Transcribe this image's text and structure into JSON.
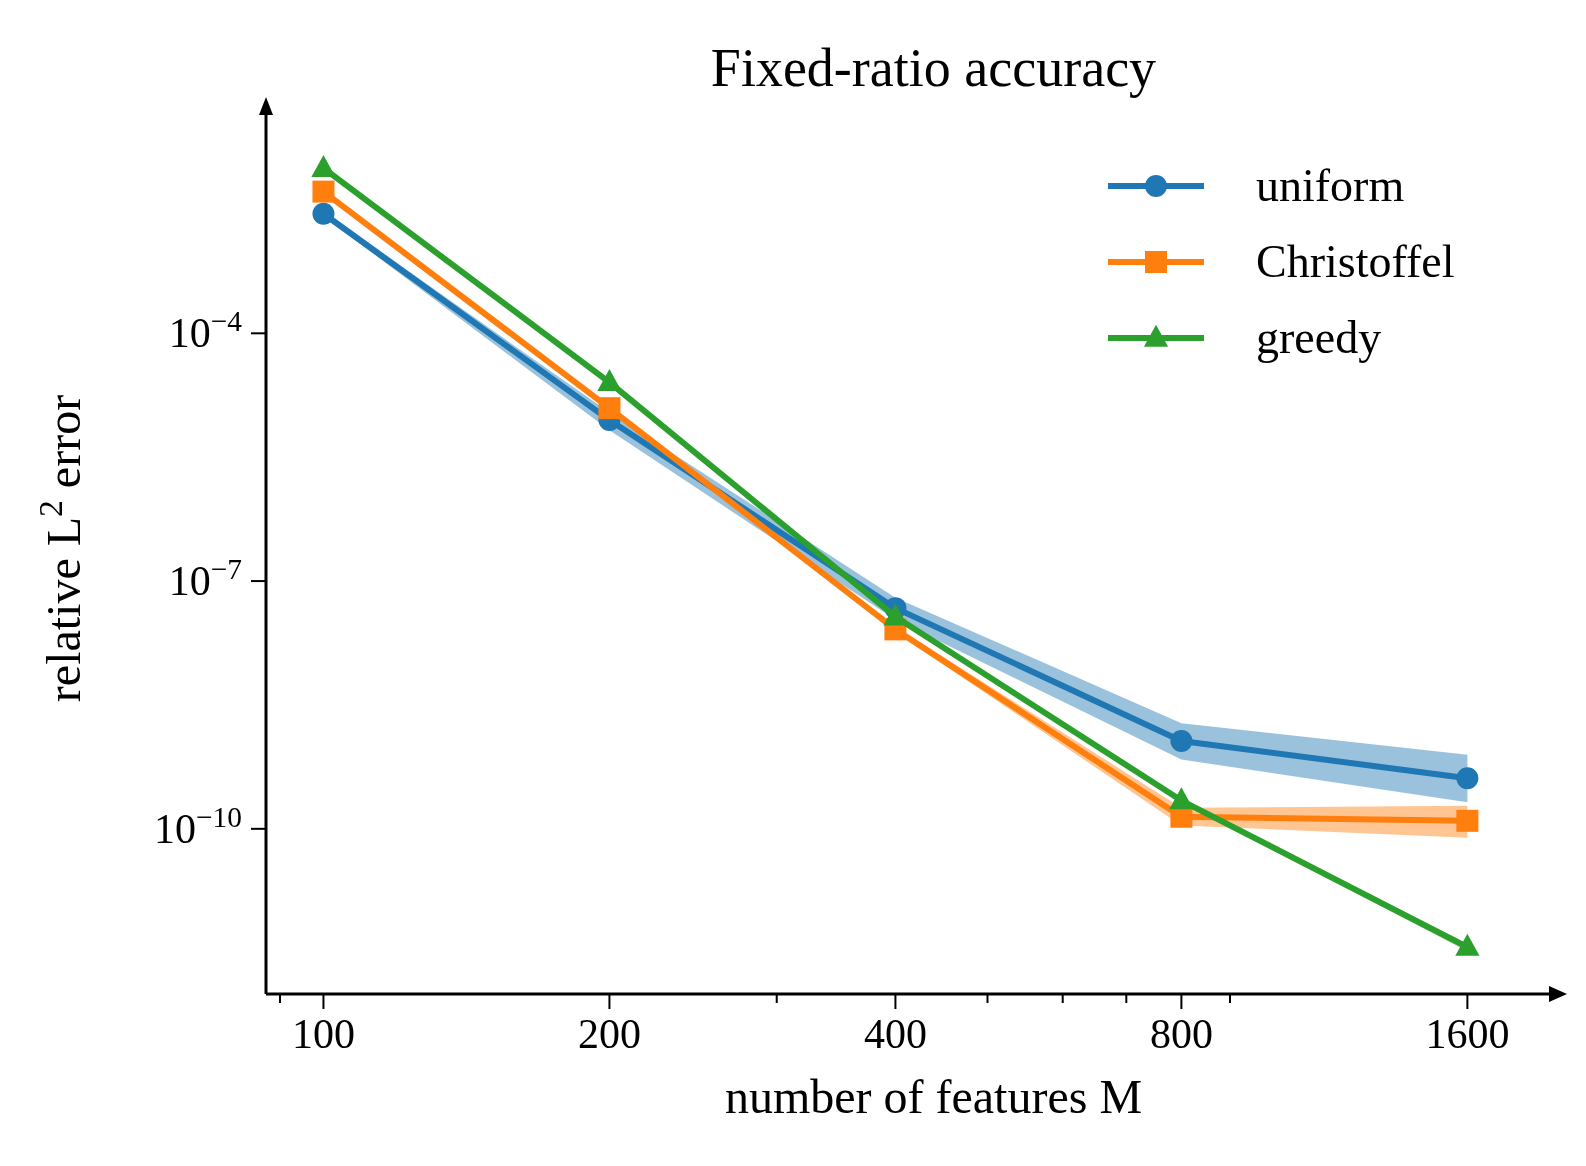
{
  "chart_data": {
    "type": "line",
    "title": "Fixed-ratio accuracy",
    "xlabel": "number of features M",
    "ylabel": "relative L$^{2}$ error",
    "log": "xy",
    "grid": false,
    "legend": "top right",
    "line_style": "solid",
    "x": [
      100,
      200,
      400,
      800,
      1600
    ],
    "xlim": [
      87,
      1950
    ],
    "xticks": [
      {
        "value": 90,
        "label": null
      },
      100,
      200,
      {
        "value": 300,
        "label": null
      },
      400,
      {
        "value": 500,
        "label": null
      },
      {
        "value": 600,
        "label": null
      },
      {
        "value": 700,
        "label": null
      },
      800,
      {
        "value": 900,
        "label": null
      },
      1600
    ],
    "ylim": [
      1e-12,
      0.044
    ],
    "yticks": [
      {
        "value": 0.0001,
        "label": "10$^{−4}$"
      },
      {
        "value": 1e-07,
        "label": "10$^{−7}$"
      },
      {
        "value": 1e-10,
        "label": "10$^{−10}$"
      }
    ],
    "series": [
      {
        "name": "uniform",
        "color": "#1f77b4",
        "marker": "circle",
        "values": [
          0.0028,
          8.9e-06,
          4.7e-08,
          1.16e-09,
          4.1e-10
        ],
        "lower": [
          0.0026,
          6.7e-06,
          3.4e-08,
          6.9e-10,
          2.1e-10
        ],
        "upper": [
          0.003,
          1.1e-05,
          6.3e-08,
          1.9e-09,
          7.9e-10
        ]
      },
      {
        "name": "Christoffel",
        "color": "#ff7f0e",
        "marker": "square",
        "values": [
          0.0052,
          1.24e-05,
          2.6e-08,
          1.4e-10,
          1.25e-10
        ],
        "lower": [
          0.005,
          1.15e-05,
          2.4e-08,
          1.1e-10,
          7.8e-11
        ],
        "upper": [
          0.0055,
          1.35e-05,
          2.8e-08,
          1.8e-10,
          1.9e-10
        ]
      },
      {
        "name": "greedy",
        "color": "#2ca02c",
        "marker": "triangle",
        "values": [
          0.01,
          2.55e-05,
          3.7e-08,
          2.2e-10,
          3.7e-12
        ],
        "lower": [
          0.0096,
          2.45e-05,
          3.5e-08,
          2.1e-10,
          3.3e-12
        ],
        "upper": [
          0.0104,
          2.65e-05,
          3.9e-08,
          2.3e-10,
          4.1e-12
        ]
      }
    ]
  }
}
